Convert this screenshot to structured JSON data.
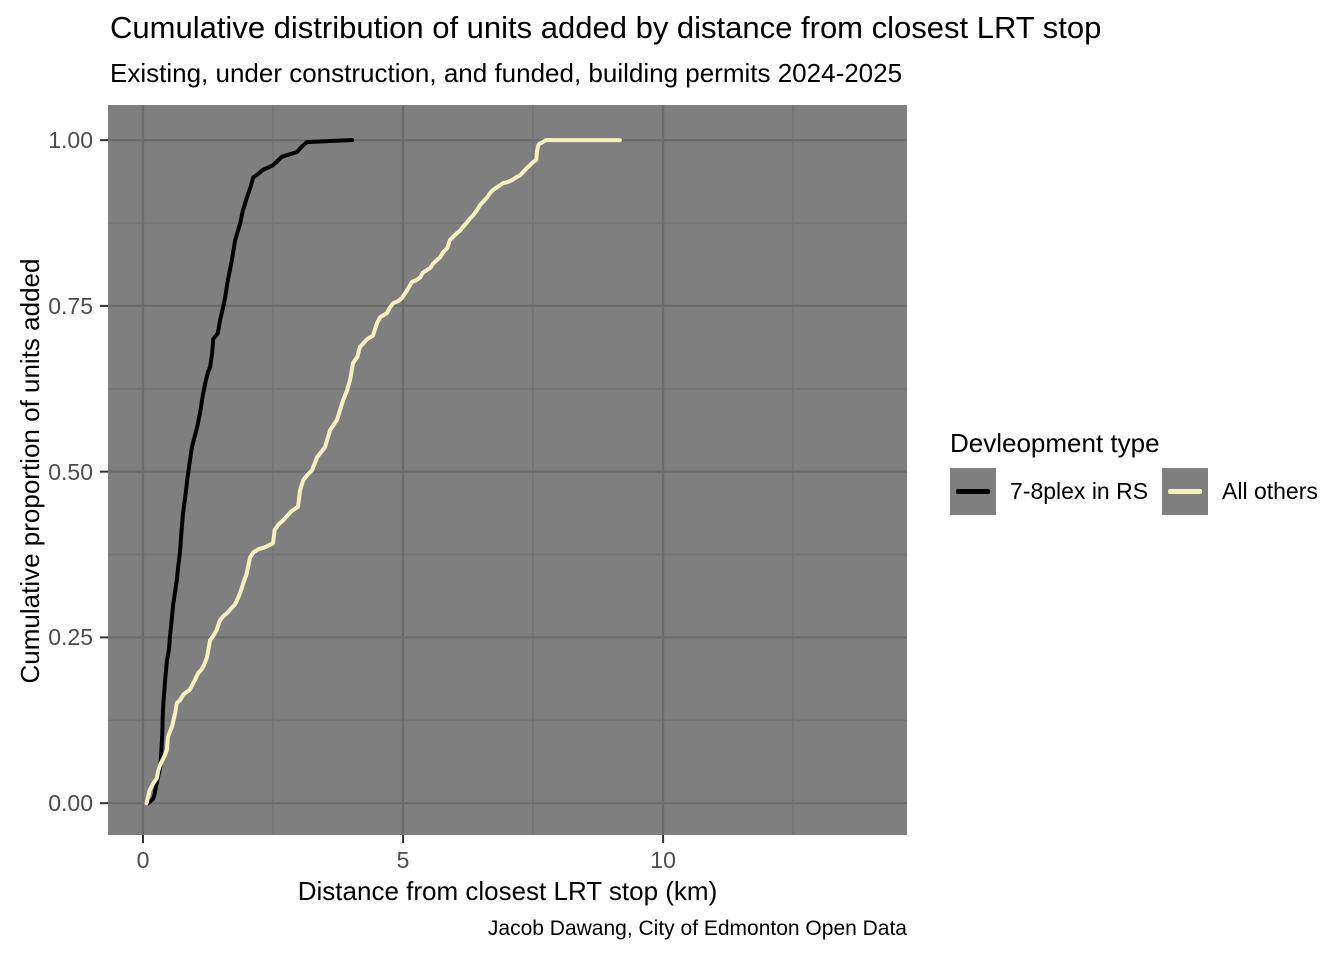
{
  "title": "Cumulative distribution of units added by distance from closest LRT stop",
  "subtitle": "Existing, under construction, and funded, building permits 2024-2025",
  "caption": "Jacob Dawang, City of Edmonton Open Data",
  "axes": {
    "x": {
      "title": "Distance from closest LRT stop (km)",
      "tick_values": [
        0,
        5,
        10
      ],
      "tick_labels": [
        "0",
        "5",
        "10"
      ],
      "minor_tick_values": [
        2.5,
        7.5,
        12.5
      ],
      "range": [
        -0.673,
        14.69
      ]
    },
    "y": {
      "title": "Cumulative proportion of units added",
      "tick_values": [
        0,
        0.25,
        0.5,
        0.75,
        1.0
      ],
      "tick_labels": [
        "0.00",
        "0.25",
        "0.50",
        "0.75",
        "1.00"
      ],
      "minor_tick_values": [
        0.125,
        0.375,
        0.625,
        0.875
      ],
      "range": [
        -0.048,
        1.053
      ]
    }
  },
  "legend": {
    "title": "Devleopment type",
    "items": [
      {
        "label": "7-8plex in RS",
        "color": "#000000"
      },
      {
        "label": "All others",
        "color": "#f5f1be"
      }
    ]
  },
  "colors": {
    "panel_background": "#7f7f7f",
    "grid_major": "#6b6b6b",
    "grid_minor": "#747474",
    "tick_mark": "#333333",
    "tick_label": "#4d4d4d",
    "legend_key_background": "#7f7f7f"
  },
  "chart_data": {
    "type": "line",
    "subtype": "ecdf",
    "title": "Cumulative distribution of units added by distance from closest LRT stop",
    "xlabel": "Distance from closest LRT stop (km)",
    "ylabel": "Cumulative proportion of units added",
    "xlim": [
      -0.673,
      14.69
    ],
    "ylim": [
      -0.048,
      1.053
    ],
    "grid": true,
    "legend_position": "right",
    "series": [
      {
        "name": "7-8plex in RS",
        "color": "#000000",
        "points": [
          [
            0.1,
            0.0
          ],
          [
            0.14,
            0.003
          ],
          [
            0.19,
            0.006
          ],
          [
            0.22,
            0.012
          ],
          [
            0.25,
            0.025
          ],
          [
            0.29,
            0.04
          ],
          [
            0.33,
            0.054
          ],
          [
            0.35,
            0.075
          ],
          [
            0.37,
            0.1
          ],
          [
            0.38,
            0.136
          ],
          [
            0.4,
            0.16
          ],
          [
            0.43,
            0.19
          ],
          [
            0.46,
            0.215
          ],
          [
            0.5,
            0.232
          ],
          [
            0.52,
            0.252
          ],
          [
            0.55,
            0.275
          ],
          [
            0.58,
            0.3
          ],
          [
            0.62,
            0.32
          ],
          [
            0.65,
            0.336
          ],
          [
            0.68,
            0.36
          ],
          [
            0.71,
            0.377
          ],
          [
            0.74,
            0.41
          ],
          [
            0.77,
            0.437
          ],
          [
            0.81,
            0.46
          ],
          [
            0.85,
            0.487
          ],
          [
            0.89,
            0.51
          ],
          [
            0.94,
            0.537
          ],
          [
            1.0,
            0.555
          ],
          [
            1.04,
            0.567
          ],
          [
            1.1,
            0.59
          ],
          [
            1.15,
            0.615
          ],
          [
            1.21,
            0.638
          ],
          [
            1.25,
            0.65
          ],
          [
            1.29,
            0.658
          ],
          [
            1.33,
            0.679
          ],
          [
            1.35,
            0.7
          ],
          [
            1.44,
            0.709
          ],
          [
            1.48,
            0.728
          ],
          [
            1.54,
            0.748
          ],
          [
            1.58,
            0.763
          ],
          [
            1.62,
            0.784
          ],
          [
            1.67,
            0.804
          ],
          [
            1.71,
            0.819
          ],
          [
            1.77,
            0.849
          ],
          [
            1.82,
            0.862
          ],
          [
            1.87,
            0.875
          ],
          [
            1.92,
            0.894
          ],
          [
            2.0,
            0.914
          ],
          [
            2.07,
            0.93
          ],
          [
            2.12,
            0.944
          ],
          [
            2.2,
            0.948
          ],
          [
            2.3,
            0.955
          ],
          [
            2.5,
            0.962
          ],
          [
            2.67,
            0.975
          ],
          [
            2.96,
            0.982
          ],
          [
            3.05,
            0.99
          ],
          [
            3.15,
            0.997
          ],
          [
            3.4,
            0.998
          ],
          [
            3.7,
            0.999
          ],
          [
            4.02,
            1.0
          ]
        ]
      },
      {
        "name": "All others",
        "color": "#f5f1be",
        "points": [
          [
            0.07,
            0.0
          ],
          [
            0.1,
            0.01
          ],
          [
            0.13,
            0.02
          ],
          [
            0.2,
            0.03
          ],
          [
            0.27,
            0.038
          ],
          [
            0.29,
            0.048
          ],
          [
            0.33,
            0.058
          ],
          [
            0.38,
            0.066
          ],
          [
            0.42,
            0.072
          ],
          [
            0.46,
            0.08
          ],
          [
            0.48,
            0.1
          ],
          [
            0.52,
            0.108
          ],
          [
            0.56,
            0.116
          ],
          [
            0.6,
            0.13
          ],
          [
            0.62,
            0.136
          ],
          [
            0.65,
            0.151
          ],
          [
            0.71,
            0.155
          ],
          [
            0.77,
            0.163
          ],
          [
            0.81,
            0.166
          ],
          [
            0.9,
            0.171
          ],
          [
            0.96,
            0.18
          ],
          [
            1.0,
            0.186
          ],
          [
            1.06,
            0.196
          ],
          [
            1.12,
            0.201
          ],
          [
            1.17,
            0.208
          ],
          [
            1.23,
            0.22
          ],
          [
            1.29,
            0.246
          ],
          [
            1.35,
            0.252
          ],
          [
            1.41,
            0.26
          ],
          [
            1.48,
            0.276
          ],
          [
            1.56,
            0.283
          ],
          [
            1.62,
            0.287
          ],
          [
            1.7,
            0.294
          ],
          [
            1.77,
            0.3
          ],
          [
            1.83,
            0.31
          ],
          [
            1.88,
            0.32
          ],
          [
            1.94,
            0.335
          ],
          [
            1.99,
            0.345
          ],
          [
            2.06,
            0.371
          ],
          [
            2.12,
            0.378
          ],
          [
            2.22,
            0.383
          ],
          [
            2.35,
            0.386
          ],
          [
            2.5,
            0.392
          ],
          [
            2.53,
            0.412
          ],
          [
            2.6,
            0.42
          ],
          [
            2.7,
            0.427
          ],
          [
            2.85,
            0.44
          ],
          [
            2.98,
            0.447
          ],
          [
            3.02,
            0.472
          ],
          [
            3.08,
            0.487
          ],
          [
            3.16,
            0.495
          ],
          [
            3.25,
            0.502
          ],
          [
            3.35,
            0.522
          ],
          [
            3.5,
            0.537
          ],
          [
            3.6,
            0.563
          ],
          [
            3.73,
            0.578
          ],
          [
            3.85,
            0.608
          ],
          [
            3.92,
            0.622
          ],
          [
            3.98,
            0.638
          ],
          [
            4.04,
            0.664
          ],
          [
            4.12,
            0.673
          ],
          [
            4.17,
            0.688
          ],
          [
            4.31,
            0.7
          ],
          [
            4.42,
            0.705
          ],
          [
            4.5,
            0.724
          ],
          [
            4.56,
            0.733
          ],
          [
            4.69,
            0.739
          ],
          [
            4.75,
            0.748
          ],
          [
            4.81,
            0.754
          ],
          [
            4.9,
            0.757
          ],
          [
            4.98,
            0.762
          ],
          [
            5.08,
            0.774
          ],
          [
            5.17,
            0.786
          ],
          [
            5.26,
            0.789
          ],
          [
            5.33,
            0.793
          ],
          [
            5.38,
            0.8
          ],
          [
            5.46,
            0.804
          ],
          [
            5.52,
            0.807
          ],
          [
            5.58,
            0.814
          ],
          [
            5.65,
            0.819
          ],
          [
            5.71,
            0.823
          ],
          [
            5.77,
            0.831
          ],
          [
            5.85,
            0.837
          ],
          [
            5.9,
            0.849
          ],
          [
            5.96,
            0.854
          ],
          [
            6.04,
            0.86
          ],
          [
            6.1,
            0.864
          ],
          [
            6.15,
            0.869
          ],
          [
            6.23,
            0.876
          ],
          [
            6.29,
            0.882
          ],
          [
            6.35,
            0.887
          ],
          [
            6.42,
            0.894
          ],
          [
            6.48,
            0.902
          ],
          [
            6.54,
            0.907
          ],
          [
            6.62,
            0.914
          ],
          [
            6.67,
            0.92
          ],
          [
            6.73,
            0.925
          ],
          [
            6.81,
            0.929
          ],
          [
            6.92,
            0.935
          ],
          [
            7.02,
            0.937
          ],
          [
            7.1,
            0.94
          ],
          [
            7.18,
            0.944
          ],
          [
            7.25,
            0.947
          ],
          [
            7.31,
            0.952
          ],
          [
            7.38,
            0.958
          ],
          [
            7.44,
            0.962
          ],
          [
            7.5,
            0.967
          ],
          [
            7.56,
            0.97
          ],
          [
            7.58,
            0.985
          ],
          [
            7.6,
            0.992
          ],
          [
            7.63,
            0.995
          ],
          [
            7.69,
            0.997
          ],
          [
            7.75,
            1.0
          ],
          [
            8.02,
            1.0
          ],
          [
            9.17,
            1.0
          ]
        ]
      }
    ]
  }
}
